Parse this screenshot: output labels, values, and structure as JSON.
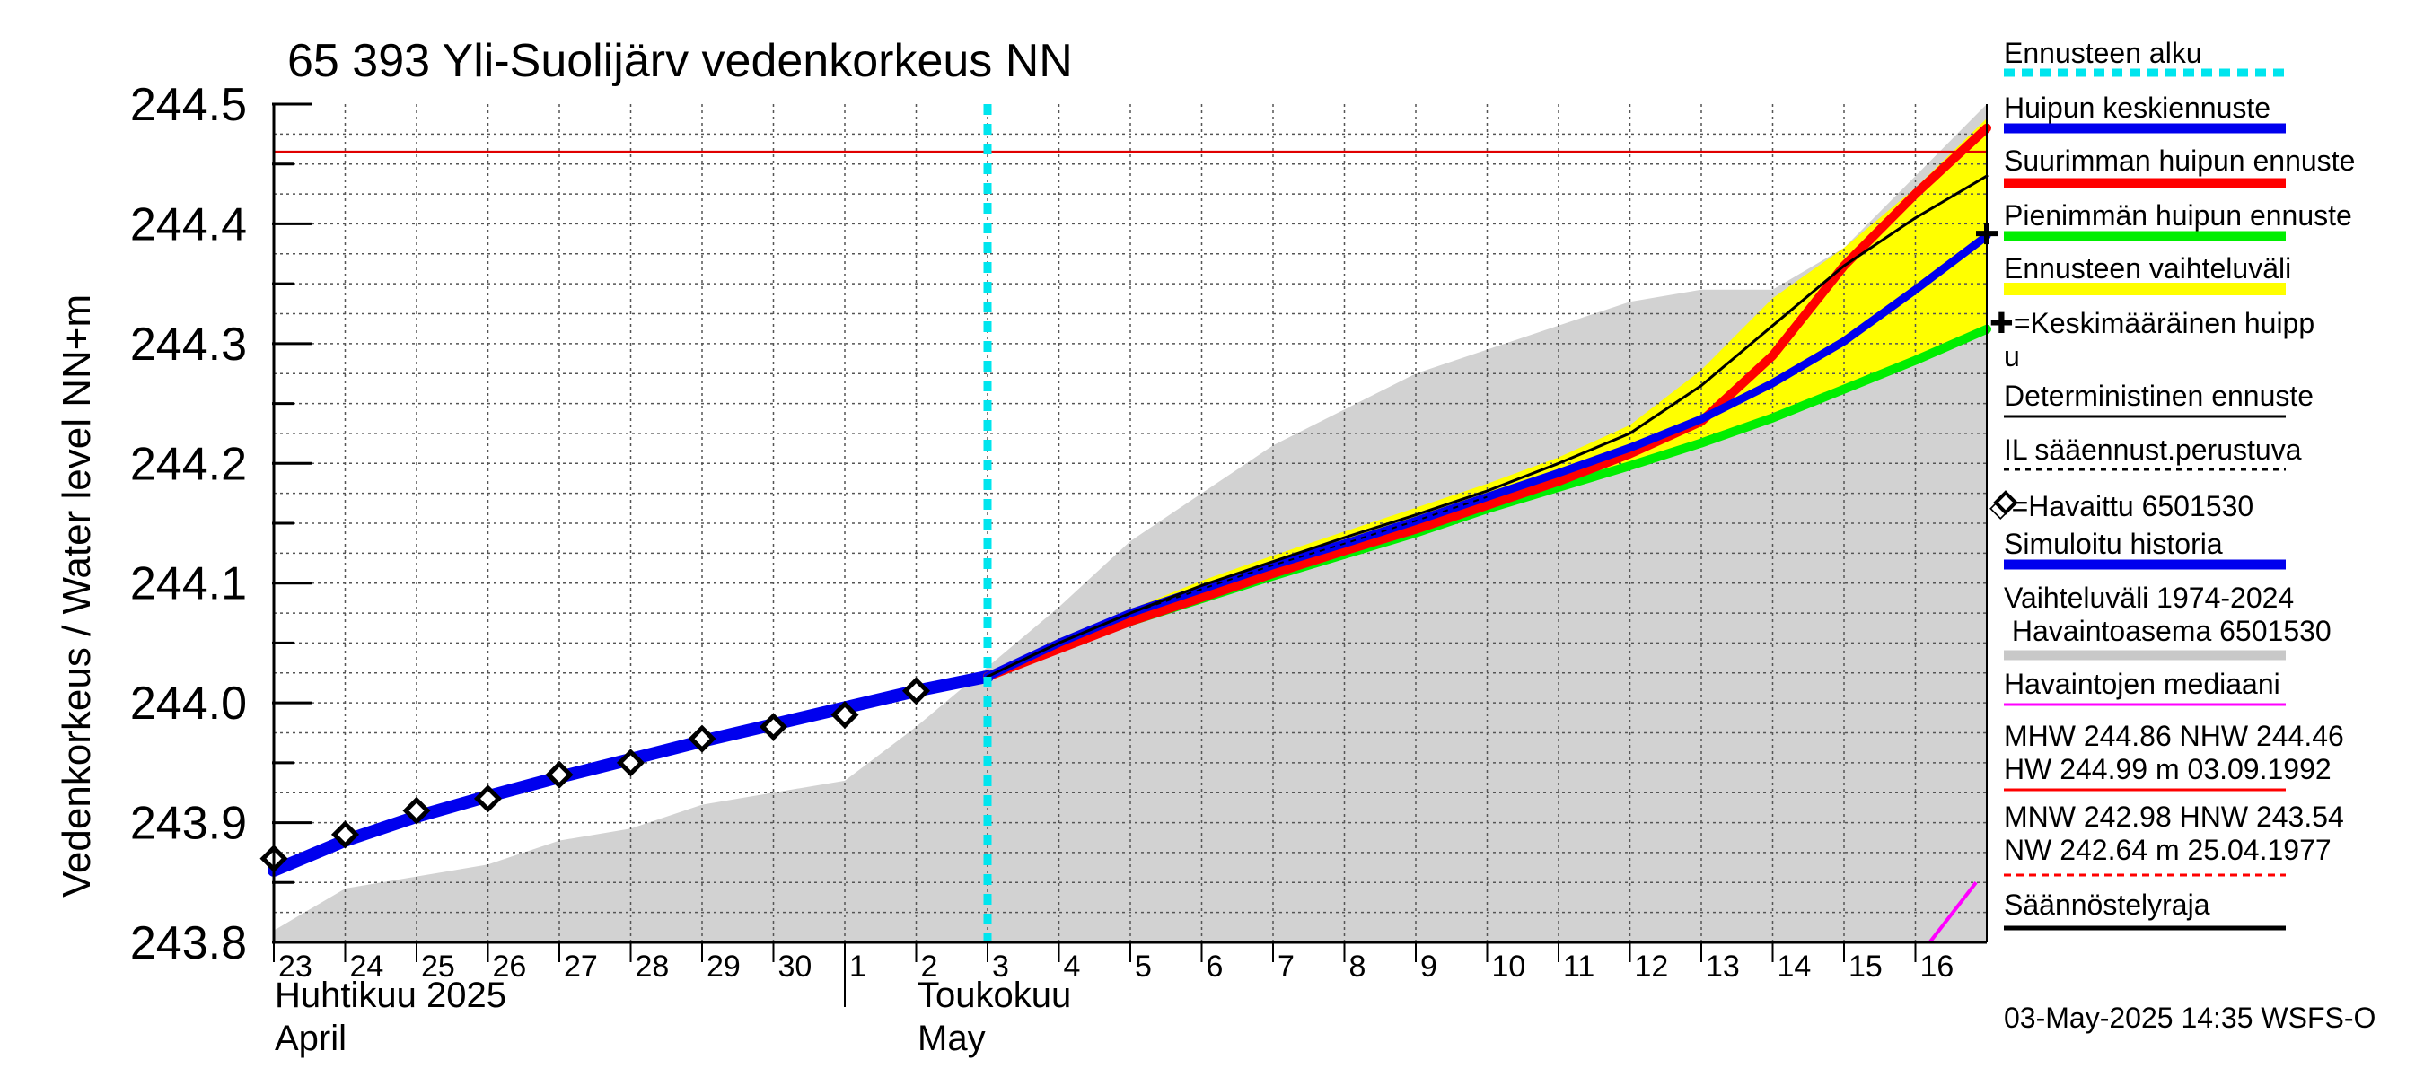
{
  "chart_data": {
    "type": "line",
    "title": "65 393 Yli-Suolijärv vedenkorkeus NN",
    "ylabel": "Vedenkorkeus / Water level   NN+m",
    "ylim": [
      243.8,
      244.5
    ],
    "yticks": [
      "243.8",
      "243.9",
      "244.0",
      "244.1",
      "244.2",
      "244.3",
      "244.4",
      "244.5"
    ],
    "x_range_days": [
      0,
      24
    ],
    "x_tick_labels": [
      "23",
      "24",
      "25",
      "26",
      "27",
      "28",
      "29",
      "30",
      "1",
      "2",
      "3",
      "4",
      "5",
      "6",
      "7",
      "8",
      "9",
      "10",
      "11",
      "12",
      "13",
      "14",
      "15",
      "16"
    ],
    "month_labels": [
      {
        "line1": "Huhtikuu  2025",
        "line2": "April"
      },
      {
        "line1": "Toukokuu",
        "line2": "May"
      }
    ],
    "forecast_start_day": 10,
    "reference_line_value": 244.46,
    "history_band": {
      "x": [
        0,
        1,
        2,
        3,
        4,
        5,
        6,
        7,
        8,
        9,
        10,
        11,
        12,
        13,
        14,
        15,
        16,
        17,
        18,
        19,
        20,
        21,
        22,
        23,
        24
      ],
      "upper": [
        243.81,
        243.845,
        243.855,
        243.865,
        243.885,
        243.895,
        243.915,
        243.925,
        243.935,
        243.98,
        244.03,
        244.08,
        244.135,
        244.175,
        244.215,
        244.245,
        244.275,
        244.295,
        244.315,
        244.335,
        244.345,
        244.345,
        244.38,
        244.44,
        244.5
      ],
      "lower": 243.8
    },
    "series": [
      {
        "name": "Simuloitu historia",
        "x": [
          0,
          1,
          2,
          3,
          4,
          5,
          6,
          7,
          8,
          9,
          10
        ],
        "values": [
          243.86,
          243.885,
          243.905,
          243.922,
          243.938,
          243.953,
          243.968,
          243.982,
          243.996,
          244.01,
          244.022
        ]
      },
      {
        "name": "Havaittu 6501530",
        "x": [
          0,
          1,
          2,
          3,
          4,
          5,
          6,
          7,
          8,
          9
        ],
        "values": [
          243.87,
          243.89,
          243.91,
          243.92,
          243.94,
          243.95,
          243.97,
          243.98,
          243.99,
          244.01
        ]
      },
      {
        "name": "Huipun keskiennuste",
        "x": [
          10,
          11,
          12,
          13,
          14,
          15,
          16,
          17,
          18,
          19,
          20,
          21,
          22,
          23,
          24
        ],
        "values": [
          244.022,
          244.05,
          244.075,
          244.095,
          244.115,
          244.133,
          244.152,
          244.172,
          244.192,
          244.213,
          244.237,
          244.267,
          244.302,
          244.345,
          244.39
        ]
      },
      {
        "name": "Suurimman huipun ennuste",
        "x": [
          10,
          11,
          12,
          13,
          14,
          15,
          16,
          17,
          18,
          19,
          20,
          21,
          22,
          23,
          24
        ],
        "values": [
          244.022,
          244.045,
          244.068,
          244.088,
          244.108,
          244.127,
          244.145,
          244.165,
          244.185,
          244.208,
          244.235,
          244.29,
          244.365,
          244.425,
          244.48
        ]
      },
      {
        "name": "Pienimmän huipun ennuste",
        "x": [
          10,
          11,
          12,
          13,
          14,
          15,
          16,
          17,
          18,
          19,
          20,
          21,
          22,
          23,
          24
        ],
        "values": [
          244.022,
          244.047,
          244.068,
          244.087,
          244.106,
          244.124,
          244.142,
          244.162,
          244.18,
          244.198,
          244.217,
          244.238,
          244.262,
          244.286,
          244.312
        ]
      },
      {
        "name": "Deterministinen ennuste",
        "x": [
          10,
          11,
          12,
          13,
          14,
          15,
          16,
          17,
          18,
          19,
          20,
          21,
          22,
          23,
          24
        ],
        "values": [
          244.022,
          244.05,
          244.075,
          244.098,
          244.118,
          244.138,
          244.157,
          244.177,
          244.2,
          244.225,
          244.265,
          244.315,
          244.365,
          244.405,
          244.44
        ]
      }
    ],
    "forecast_band_upper": [
      244.022,
      244.05,
      244.078,
      244.102,
      244.123,
      244.143,
      244.163,
      244.183,
      244.205,
      244.232,
      244.278,
      244.338,
      244.38,
      244.43,
      244.488
    ],
    "mean_peak_marker": {
      "x": 24,
      "value": 244.392
    },
    "regulation_limit_segment": {
      "x": [
        23.2,
        23.85
      ],
      "values": [
        243.8,
        243.85
      ]
    }
  },
  "legend": {
    "items": [
      {
        "label": "Ennusteen alku",
        "color": "#00e5ee",
        "style": "dotted"
      },
      {
        "label": "Huipun keskiennuste",
        "color": "#0000ee",
        "style": "thick"
      },
      {
        "label": "Suurimman huipun ennuste",
        "color": "#ff0000",
        "style": "thick"
      },
      {
        "label": "Pienimmän huipun ennuste",
        "color": "#00ee00",
        "style": "thick"
      },
      {
        "label": "Ennusteen vaihteluväli",
        "color": "#ffff00",
        "style": "band"
      },
      {
        "label_line1": "✚=Keskimääräinen huipp",
        "label_line2": "u"
      },
      {
        "label": "Deterministinen ennuste",
        "color": "#000000",
        "style": "thin"
      },
      {
        "label": "IL sääennust.perustuva",
        "color": "#000000",
        "style": "dashed"
      },
      {
        "label": "◇=Havaittu 6501530"
      },
      {
        "label": "Simuloitu historia",
        "color": "#0000ee",
        "style": "thick"
      },
      {
        "label_line1": "Vaihteluväli 1974-2024",
        "label_line2": " Havaintoasema 6501530",
        "color": "#c8c8c8",
        "style": "thick"
      },
      {
        "label": "Havaintojen mediaani",
        "color": "#ff00ff",
        "style": "thin"
      },
      {
        "label_line1": "MHW 244.86 NHW 244.46",
        "label_line2": "HW 244.99 m 03.09.1992",
        "color": "#ff0000",
        "style": "thin"
      },
      {
        "label_line1": "MNW 242.98 HNW 243.54",
        "label_line2": "NW 242.64 m 25.04.1977",
        "color": "#ff0000",
        "style": "dashed"
      },
      {
        "label": "Säännöstelyraja",
        "color": "#000000",
        "style": "thick"
      }
    ]
  },
  "footer": {
    "timestamp": "03-May-2025 14:35 WSFS-O"
  },
  "colors": {
    "history_band": "#d2d2d2",
    "forecast_band": "#ffff00",
    "mean": "#0000ee",
    "max": "#ff0000",
    "min": "#00ee00",
    "forecast_start": "#00e5ee",
    "reference": "#e00000",
    "regulation": "#ff00ff"
  }
}
